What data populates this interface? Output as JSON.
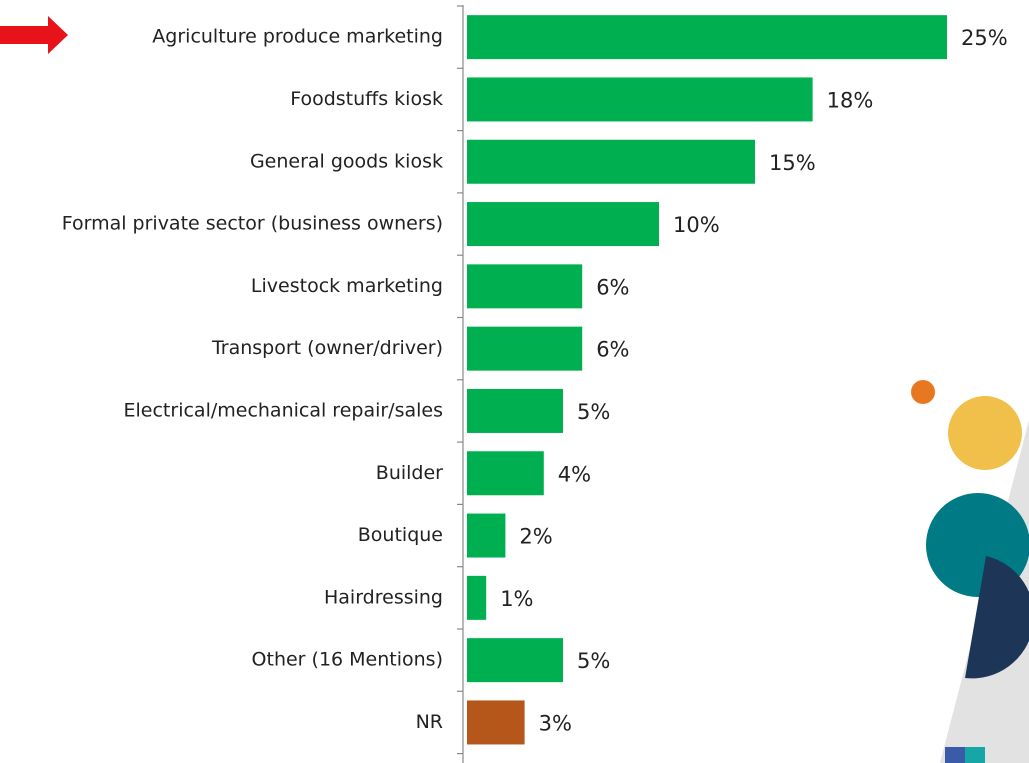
{
  "chart_data": {
    "type": "bar",
    "orientation": "horizontal",
    "categories": [
      "Agriculture produce marketing",
      "Foodstuffs kiosk",
      "General goods kiosk",
      "Formal private sector (business owners)",
      "Livestock marketing",
      "Transport (owner/driver)",
      "Electrical/mechanical repair/sales",
      "Builder",
      "Boutique",
      "Hairdressing",
      "Other (16 Mentions)",
      "NR"
    ],
    "values": [
      25,
      18,
      15,
      10,
      6,
      6,
      5,
      4,
      2,
      1,
      5,
      3
    ],
    "value_labels": [
      "25%",
      "18%",
      "15%",
      "10%",
      "6%",
      "6%",
      "5%",
      "4%",
      "2%",
      "1%",
      "5%",
      "3%"
    ],
    "colors": [
      "#00b050",
      "#00b050",
      "#00b050",
      "#00b050",
      "#00b050",
      "#00b050",
      "#00b050",
      "#00b050",
      "#00b050",
      "#00b050",
      "#00b050",
      "#b5561a"
    ]
  }
}
